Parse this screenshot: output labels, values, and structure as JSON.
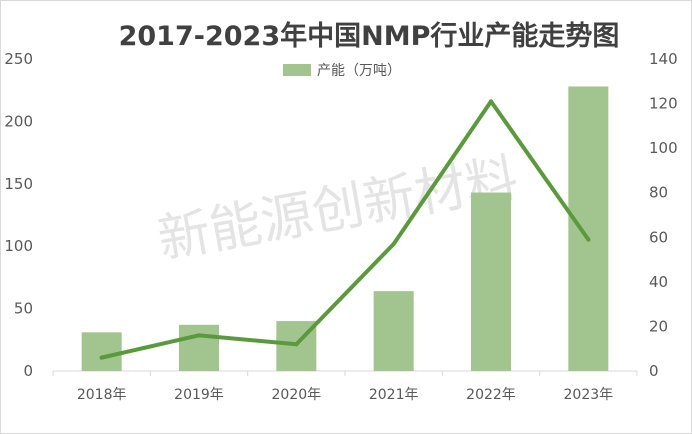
{
  "chart_data": {
    "type": "bar",
    "title": "2017-2023年中国NMP行业产能走势图",
    "categories": [
      "2018年",
      "2019年",
      "2020年",
      "2021年",
      "2022年",
      "2023年"
    ],
    "series": [
      {
        "name": "产能（万吨）",
        "type": "bar",
        "axis": "left",
        "color": "#a2c590",
        "values": [
          31,
          37,
          40,
          64,
          143,
          228
        ]
      },
      {
        "type": "line",
        "axis": "right",
        "color": "#5a9a3c",
        "values": [
          6,
          16,
          12,
          57,
          121,
          59
        ]
      }
    ],
    "y_left": {
      "min": 0,
      "max": 250,
      "ticks": [
        0,
        50,
        100,
        150,
        200,
        250
      ]
    },
    "y_right": {
      "min": 0,
      "max": 140,
      "ticks": [
        0,
        20,
        40,
        60,
        80,
        100,
        120,
        140
      ]
    },
    "legend_position": "top-center",
    "grid": false
  },
  "watermark": "新能源创新材料"
}
